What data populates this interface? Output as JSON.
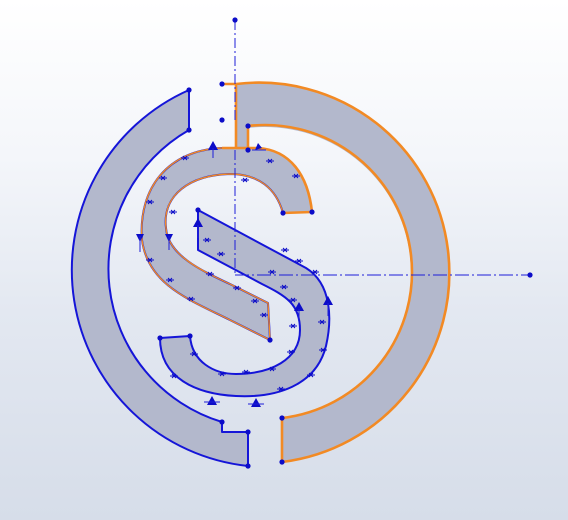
{
  "view": {
    "background_top": "#ffffff",
    "background_bottom": "#d6dde9",
    "face_color": "#b3b8cc",
    "edge_color": "#1515d8",
    "selected_edge_color": "#f28a24"
  },
  "icons": {
    "origin": "sketch-origin-icon",
    "relations": "sketch-relation-marker-icon"
  }
}
